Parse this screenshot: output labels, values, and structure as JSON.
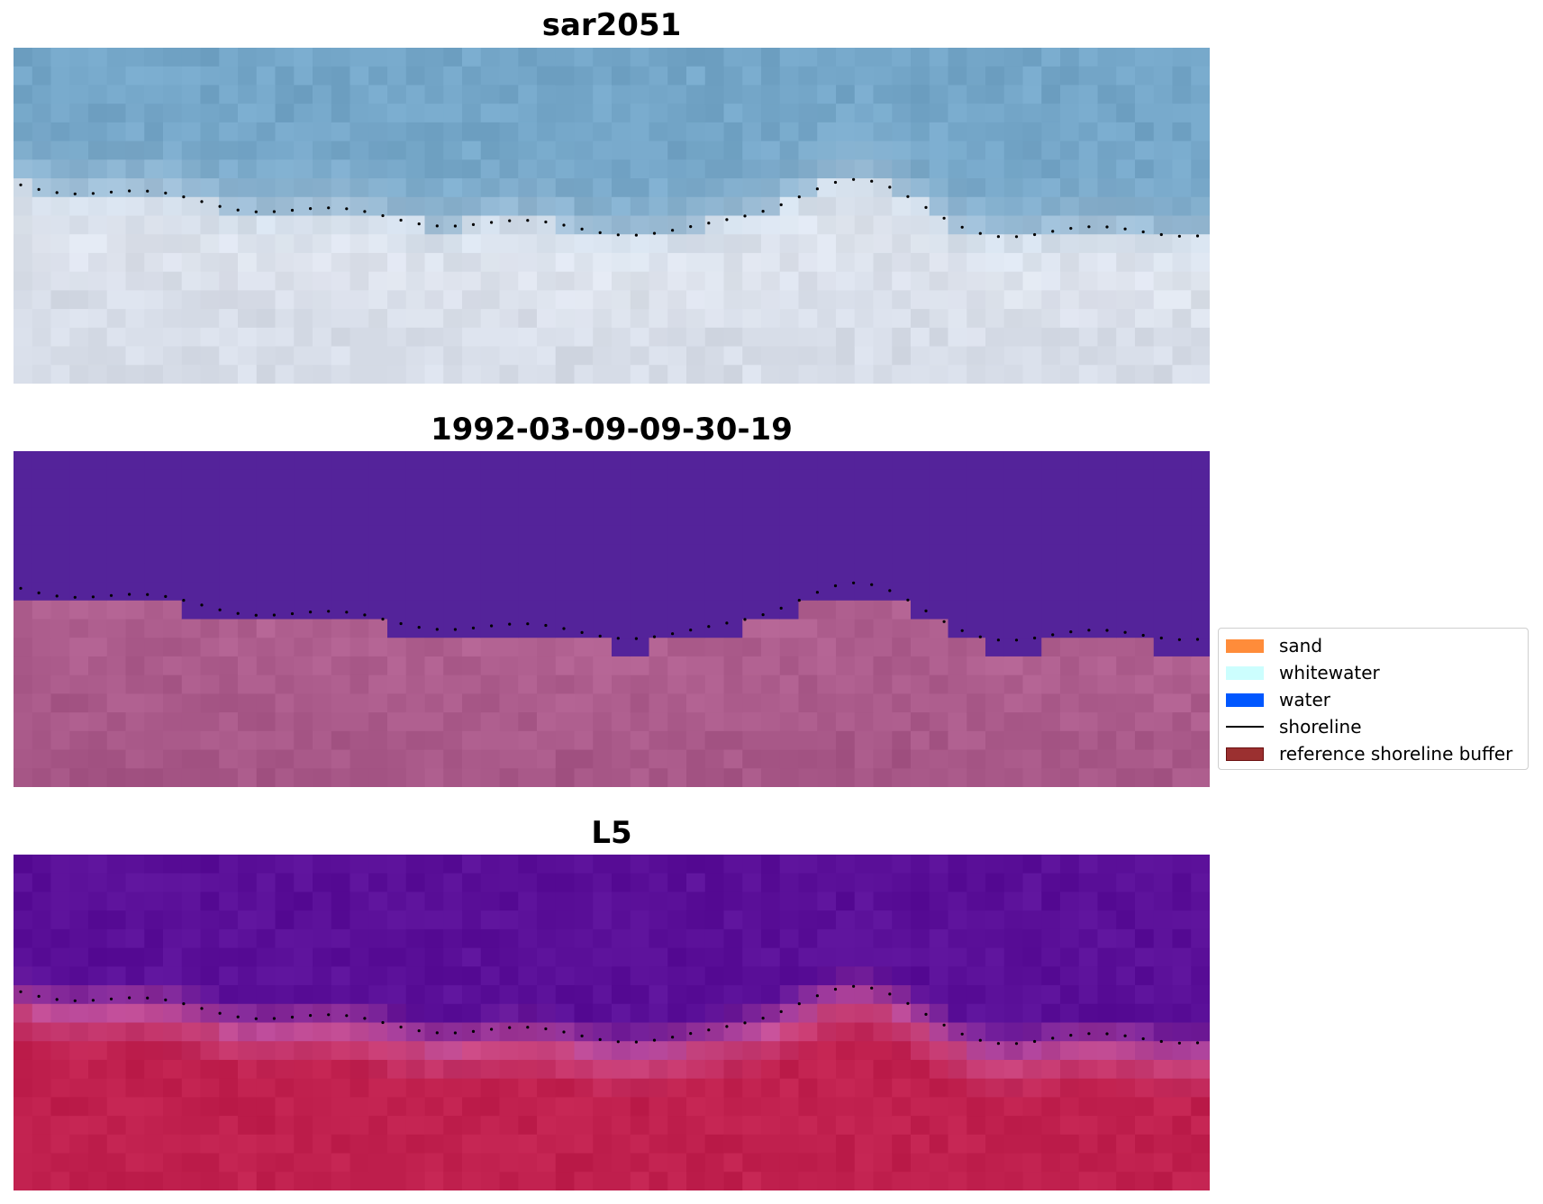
{
  "panels": [
    {
      "title": "sar2051",
      "style": "sar"
    },
    {
      "title": "1992-03-09-09-30-19",
      "style": "classified"
    },
    {
      "title": "L5",
      "style": "l5"
    }
  ],
  "legend": {
    "items": [
      {
        "label": "sand",
        "kind": "patch",
        "color": "#ff8c3a",
        "edge": "#ff8c3a"
      },
      {
        "label": "whitewater",
        "kind": "patch",
        "color": "#ccfefe",
        "edge": "#ccfefe"
      },
      {
        "label": "water",
        "kind": "patch",
        "color": "#0057ff",
        "edge": "#0057ff"
      },
      {
        "label": "shoreline",
        "kind": "line",
        "color": "#000000"
      },
      {
        "label": "reference shoreline buffer",
        "kind": "patch",
        "color": "#9b3030",
        "edge": "#6b1010"
      }
    ]
  },
  "colors": {
    "sar_water": "#74a6c8",
    "sar_land": "#d7dde8",
    "classified_water": "#54239a",
    "classified_land": "#b06090",
    "l5_water": "#5a0f98",
    "l5_land": "#c0204e",
    "shoreline_dots": "#000000"
  }
}
